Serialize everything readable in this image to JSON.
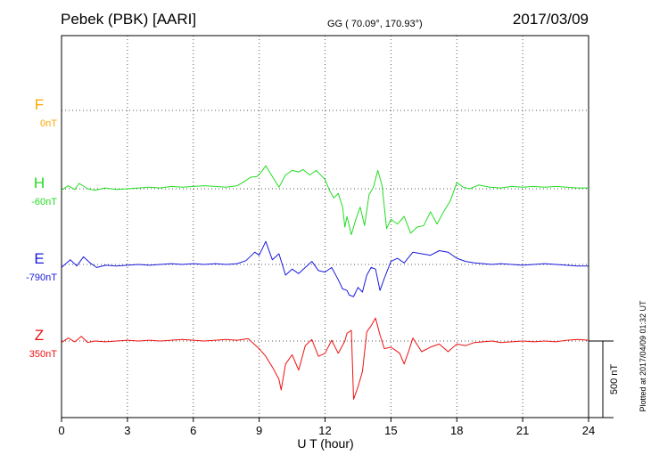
{
  "header": {
    "station": "Pebek (PBK)  [AARI]",
    "coords": "GG ( 70.09°, 170.93°)",
    "date": "2017/03/09"
  },
  "footer": {
    "plotted": "Plotted at 2017/04/09 01:32 UT",
    "scale_label": "500 nT"
  },
  "chart_data": {
    "type": "line",
    "xlabel": "U T (hour)",
    "xlim": [
      0,
      24
    ],
    "xticks": [
      0,
      3,
      6,
      9,
      12,
      15,
      18,
      21,
      24
    ],
    "grid": true,
    "scale_bar_nT": 500,
    "series": [
      {
        "name": "F",
        "baseline_label": "0nT",
        "color": "#ffa500",
        "x": [],
        "y": []
      },
      {
        "name": "H",
        "baseline_label": "-60nT",
        "color": "#22dd22",
        "x": [
          0,
          0.3,
          0.6,
          0.8,
          1.2,
          1.5,
          2,
          2.5,
          3,
          3.5,
          4,
          4.5,
          5,
          5.5,
          6,
          6.5,
          7,
          7.5,
          8,
          8.3,
          8.6,
          8.9,
          9.1,
          9.3,
          9.6,
          9.9,
          10.2,
          10.5,
          10.8,
          11,
          11.3,
          11.6,
          12,
          12.2,
          12.4,
          12.6,
          12.8,
          12.9,
          13.0,
          13.2,
          13.4,
          13.6,
          13.8,
          14.0,
          14.2,
          14.4,
          14.6,
          14.8,
          15,
          15.3,
          15.6,
          15.9,
          16.2,
          16.5,
          16.8,
          17.1,
          17.4,
          17.7,
          18,
          18.3,
          18.6,
          19,
          19.5,
          20,
          20.5,
          21,
          21.5,
          22,
          22.5,
          23,
          23.5,
          24
        ],
        "y": [
          -10,
          20,
          -5,
          35,
          0,
          -10,
          5,
          -5,
          0,
          5,
          10,
          5,
          15,
          10,
          15,
          20,
          15,
          10,
          20,
          45,
          75,
          80,
          110,
          150,
          80,
          10,
          90,
          120,
          110,
          125,
          90,
          120,
          60,
          -10,
          -60,
          -30,
          -120,
          -250,
          -180,
          -300,
          -200,
          -120,
          -240,
          -40,
          10,
          120,
          20,
          -260,
          -200,
          -230,
          -180,
          -290,
          -250,
          -240,
          -150,
          -230,
          -150,
          -80,
          40,
          10,
          0,
          25,
          10,
          5,
          15,
          10,
          15,
          10,
          15,
          10,
          5,
          5
        ]
      },
      {
        "name": "E",
        "baseline_label": "-790nT",
        "color": "#1a1add",
        "x": [
          0,
          0.4,
          0.7,
          1.0,
          1.3,
          1.6,
          2,
          2.5,
          3,
          3.5,
          4,
          4.5,
          5,
          5.5,
          6,
          6.5,
          7,
          7.5,
          8,
          8.4,
          8.8,
          9.0,
          9.3,
          9.6,
          9.9,
          10.2,
          10.5,
          10.8,
          11.1,
          11.4,
          11.7,
          12.0,
          12.3,
          12.6,
          12.8,
          13.0,
          13.1,
          13.3,
          13.5,
          13.7,
          13.9,
          14.1,
          14.3,
          14.5,
          14.7,
          15.0,
          15.3,
          15.6,
          16.0,
          16.4,
          16.8,
          17.2,
          17.6,
          18.0,
          18.4,
          18.8,
          19.2,
          19.6,
          20,
          20.5,
          21,
          21.5,
          22,
          22.5,
          23,
          23.5,
          24
        ],
        "y": [
          -20,
          30,
          -10,
          50,
          10,
          -20,
          -5,
          -10,
          -5,
          0,
          -5,
          0,
          5,
          0,
          5,
          0,
          5,
          0,
          5,
          25,
          80,
          60,
          150,
          30,
          70,
          -70,
          -30,
          -60,
          -20,
          20,
          -40,
          -50,
          -20,
          -100,
          -160,
          -170,
          -200,
          -210,
          -150,
          -180,
          -70,
          -20,
          -30,
          -170,
          -90,
          20,
          40,
          10,
          80,
          70,
          60,
          90,
          80,
          40,
          20,
          10,
          5,
          0,
          5,
          0,
          -5,
          0,
          5,
          0,
          -5,
          -10,
          -10
        ]
      },
      {
        "name": "Z",
        "baseline_label": "350nT",
        "color": "#ee1111",
        "x": [
          0,
          0.3,
          0.6,
          0.9,
          1.2,
          1.5,
          2,
          2.5,
          3,
          3.5,
          4,
          4.5,
          5,
          5.5,
          6,
          6.5,
          7,
          7.5,
          8,
          8.5,
          9.0,
          9.3,
          9.6,
          9.9,
          10.0,
          10.2,
          10.5,
          10.8,
          11.1,
          11.4,
          11.7,
          12.0,
          12.3,
          12.6,
          12.9,
          13.0,
          13.2,
          13.3,
          13.5,
          13.7,
          13.9,
          14.1,
          14.3,
          14.5,
          14.7,
          15.0,
          15.2,
          15.4,
          15.6,
          15.8,
          16.0,
          16.4,
          16.8,
          17.2,
          17.6,
          18.0,
          18.4,
          18.8,
          19.2,
          19.6,
          20,
          20.5,
          21,
          21.5,
          22,
          22.5,
          23,
          23.5,
          24
        ],
        "y": [
          -10,
          20,
          -5,
          30,
          -10,
          0,
          -5,
          0,
          5,
          0,
          5,
          0,
          5,
          10,
          5,
          0,
          5,
          10,
          5,
          15,
          -50,
          -100,
          -170,
          -250,
          -320,
          -150,
          -90,
          -190,
          -30,
          10,
          -100,
          -80,
          5,
          -80,
          0,
          50,
          70,
          -380,
          -300,
          -200,
          60,
          100,
          150,
          40,
          -50,
          -40,
          -60,
          -80,
          -150,
          -70,
          20,
          -70,
          -40,
          -20,
          -70,
          -20,
          -30,
          -10,
          -5,
          0,
          -10,
          -5,
          0,
          -5,
          0,
          -5,
          5,
          10,
          5
        ]
      }
    ]
  }
}
